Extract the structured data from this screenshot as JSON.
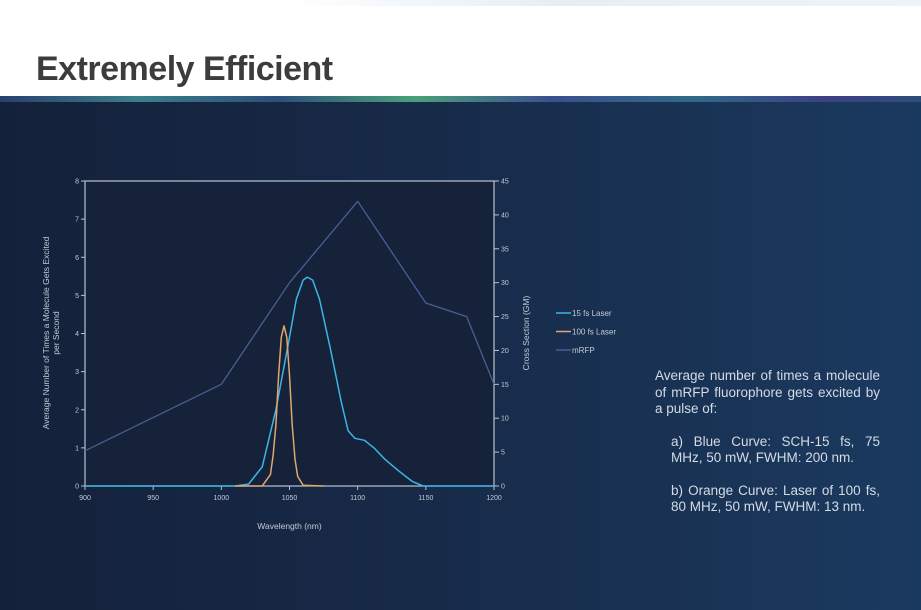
{
  "slide": {
    "title": "Extremely Efficient",
    "description": {
      "intro": "Average number of times a molecule of mRFP fluorophore gets excited by a pulse of:",
      "items": [
        "a) Blue Curve: SCH-15 fs, 75 MHz, 50 mW, FWHM: 200 nm.",
        "b) Orange Curve: Laser of 100 fs, 80 MHz, 50 mW, FWHM: 13 nm."
      ]
    }
  },
  "chart_data": {
    "type": "line",
    "title": "",
    "xlabel": "Wavelength (nm)",
    "ylabel": "Average Number of Times a Molecule Gets Excited per Second",
    "ylabel_right": "Cross Section (GM)",
    "xlim": [
      900,
      1200
    ],
    "ylim": [
      0,
      8
    ],
    "ylim_right": [
      0,
      45
    ],
    "xticks": [
      "900",
      "950",
      "1000",
      "1050",
      "1100",
      "1150",
      "1200"
    ],
    "yticks": [
      "0",
      "1",
      "2",
      "3",
      "4",
      "5",
      "6",
      "7",
      "8"
    ],
    "yticks_right": [
      "0",
      "5",
      "10",
      "15",
      "20",
      "25",
      "30",
      "35",
      "40",
      "45"
    ],
    "legend_position": "right",
    "grid": false,
    "colors": {
      "15 fs Laser": "#3db4e6",
      "100 fs Laser": "#e0a66c",
      "mRFP": "#4a5e95",
      "axis": "#b9c2d0"
    },
    "series": [
      {
        "name": "15 fs Laser",
        "axis": "left",
        "x": [
          900,
          1010,
          1020,
          1030,
          1040,
          1050,
          1055,
          1060,
          1063,
          1067,
          1072,
          1080,
          1088,
          1093,
          1098,
          1105,
          1112,
          1120,
          1130,
          1140,
          1148,
          1200
        ],
        "y": [
          0,
          0,
          0.05,
          0.5,
          2.0,
          3.9,
          4.9,
          5.4,
          5.48,
          5.4,
          4.9,
          3.6,
          2.2,
          1.45,
          1.25,
          1.2,
          1.0,
          0.7,
          0.4,
          0.12,
          0,
          0
        ]
      },
      {
        "name": "100 fs Laser",
        "axis": "left",
        "x": [
          1010,
          1030,
          1036,
          1038,
          1040,
          1042,
          1044,
          1046,
          1048,
          1050,
          1052,
          1054,
          1056,
          1060,
          1075
        ],
        "y": [
          0,
          0,
          0.3,
          0.8,
          1.6,
          2.9,
          3.9,
          4.2,
          3.9,
          2.9,
          1.6,
          0.7,
          0.25,
          0.02,
          0
        ]
      },
      {
        "name": "mRFP",
        "axis": "right",
        "x": [
          900,
          1000,
          1050,
          1100,
          1150,
          1180,
          1200
        ],
        "y": [
          5.2,
          15,
          30,
          42,
          27,
          25,
          15
        ]
      }
    ]
  }
}
